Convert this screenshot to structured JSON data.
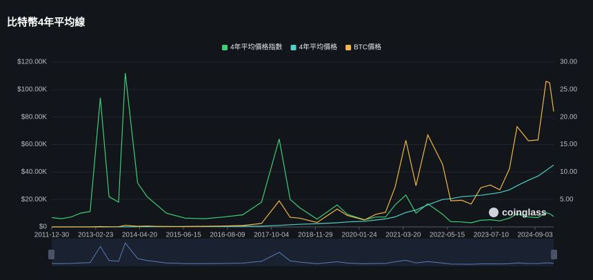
{
  "chart_data": {
    "type": "line",
    "title": "比特幣4年平均線",
    "watermark": "coinglass",
    "x": [
      "2012-01-01",
      "2012-04-01",
      "2012-07-01",
      "2012-10-01",
      "2013-01-01",
      "2013-04-09",
      "2013-07-01",
      "2013-10-01",
      "2013-12-04",
      "2014-04-01",
      "2014-07-01",
      "2014-10-01",
      "2015-01-01",
      "2015-07-01",
      "2016-01-01",
      "2016-07-01",
      "2017-01-01",
      "2017-07-01",
      "2017-12-17",
      "2018-04-01",
      "2018-07-01",
      "2018-12-15",
      "2019-06-26",
      "2019-10-01",
      "2020-03-13",
      "2020-07-01",
      "2020-10-01",
      "2021-01-01",
      "2021-04-14",
      "2021-07-20",
      "2021-11-10",
      "2022-04-01",
      "2022-06-18",
      "2022-10-01",
      "2022-12-30",
      "2023-04-01",
      "2023-07-01",
      "2023-10-01",
      "2024-01-01",
      "2024-03-14",
      "2024-07-01",
      "2024-10-01",
      "2024-12-17",
      "2025-01-20",
      "2025-02-28"
    ],
    "series": [
      {
        "name": "4年平均價格指數",
        "color": "#3ecf7a",
        "axis": "y2",
        "values": [
          1.7,
          1.5,
          1.8,
          2.5,
          2.8,
          23.5,
          5.5,
          4.5,
          28,
          8,
          5.5,
          4,
          2.5,
          1.6,
          1.5,
          1.8,
          2.2,
          4.5,
          16,
          5,
          3.5,
          1.4,
          4,
          2.3,
          1.3,
          1.8,
          1.8,
          4,
          5.8,
          2.5,
          4.2,
          2.3,
          0.95,
          0.9,
          0.75,
          1.2,
          1.3,
          1.1,
          1.6,
          2.4,
          1.8,
          1.7,
          2.6,
          2.4,
          1.9
        ]
      },
      {
        "name": "4年平均價格",
        "color": "#4fd1c5",
        "values": [
          3,
          3,
          4,
          4,
          5,
          10,
          20,
          35,
          45,
          150,
          200,
          230,
          250,
          290,
          320,
          370,
          430,
          540,
          1100,
          1600,
          1900,
          2300,
          3000,
          3600,
          4100,
          5000,
          5800,
          7300,
          10500,
          12300,
          16000,
          20000,
          20500,
          22000,
          22500,
          23000,
          24000,
          25000,
          27000,
          30000,
          34000,
          37000,
          41000,
          43000,
          45000
        ]
      },
      {
        "name": "BTC價格",
        "color": "#f0b94a",
        "values": [
          6,
          5,
          7,
          12,
          13,
          230,
          90,
          140,
          1150,
          450,
          630,
          380,
          300,
          260,
          430,
          670,
          1000,
          2500,
          19000,
          7000,
          6400,
          3200,
          13000,
          8300,
          5000,
          9200,
          10600,
          29000,
          63000,
          30000,
          67000,
          45500,
          19000,
          19400,
          16600,
          28500,
          30500,
          27000,
          42300,
          73000,
          62700,
          63300,
          106000,
          105000,
          84000
        ]
      }
    ],
    "xlim": [
      "2011-12-30",
      "2025-02-28"
    ],
    "xticks": [
      "2011-12-30",
      "2013-02-23",
      "2014-04-20",
      "2015-06-15",
      "2016-08-09",
      "2017-10-04",
      "2018-11-29",
      "2020-01-24",
      "2021-03-20",
      "2022-05-15",
      "2023-07-10",
      "2024-09-03"
    ],
    "ylim": [
      0,
      120000
    ],
    "yticks": [
      {
        "value": 0,
        "label": "$0"
      },
      {
        "value": 20000,
        "label": "$20.00K"
      },
      {
        "value": 40000,
        "label": "$40.00K"
      },
      {
        "value": 60000,
        "label": "$60.00K"
      },
      {
        "value": 80000,
        "label": "$80.00K"
      },
      {
        "value": 100000,
        "label": "$100.00K"
      },
      {
        "value": 120000,
        "label": "$120.00K"
      }
    ],
    "y2lim": [
      0,
      30
    ],
    "y2ticks": [
      {
        "value": 5,
        "label": "5.00"
      },
      {
        "value": 10,
        "label": "10.00"
      },
      {
        "value": 15,
        "label": "15.00"
      },
      {
        "value": 20,
        "label": "20.00"
      },
      {
        "value": 25,
        "label": "25.00"
      },
      {
        "value": 30,
        "label": "30.00"
      }
    ],
    "legend": "top"
  }
}
